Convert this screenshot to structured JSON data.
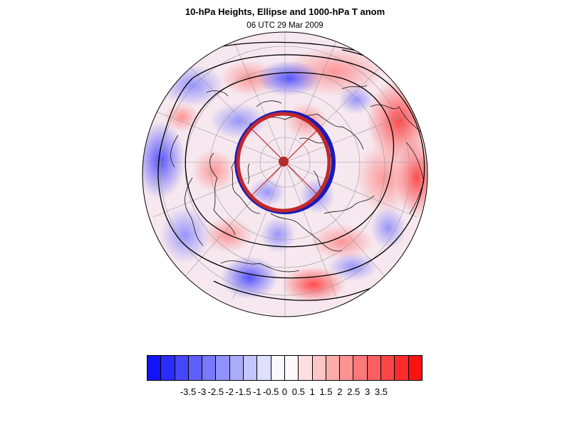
{
  "title": "10-hPa Heights, Ellipse and 1000-hPa T anom",
  "subtitle": "06 UTC 29 Mar 2009",
  "colors": {
    "negative": "#1010ff",
    "positive": "#ff1010",
    "contour": "#000000",
    "ellipse_red": "#c0282a",
    "ellipse_blue": "#1a1ab8",
    "center": "#b52a2a"
  },
  "colorbar": {
    "segments": [
      "#1313fb",
      "#2c2cfc",
      "#4646fc",
      "#5f5ffc",
      "#7979fc",
      "#9292fc",
      "#acacfd",
      "#c5c5fd",
      "#dfdffe",
      "#f8f8fe",
      "#fef8f8",
      "#fedfdf",
      "#fdc5c5",
      "#fdacac",
      "#fc9292",
      "#fc7979",
      "#fc5f5f",
      "#fc4646",
      "#fc2c2c",
      "#fb1313"
    ],
    "tick_labels": [
      "-3.5",
      "-3",
      "-2.5",
      "-2",
      "-1.5",
      "-1",
      "-0.5",
      "0",
      "0.5",
      "1",
      "1.5",
      "2",
      "2.5",
      "3",
      "3.5"
    ]
  }
}
